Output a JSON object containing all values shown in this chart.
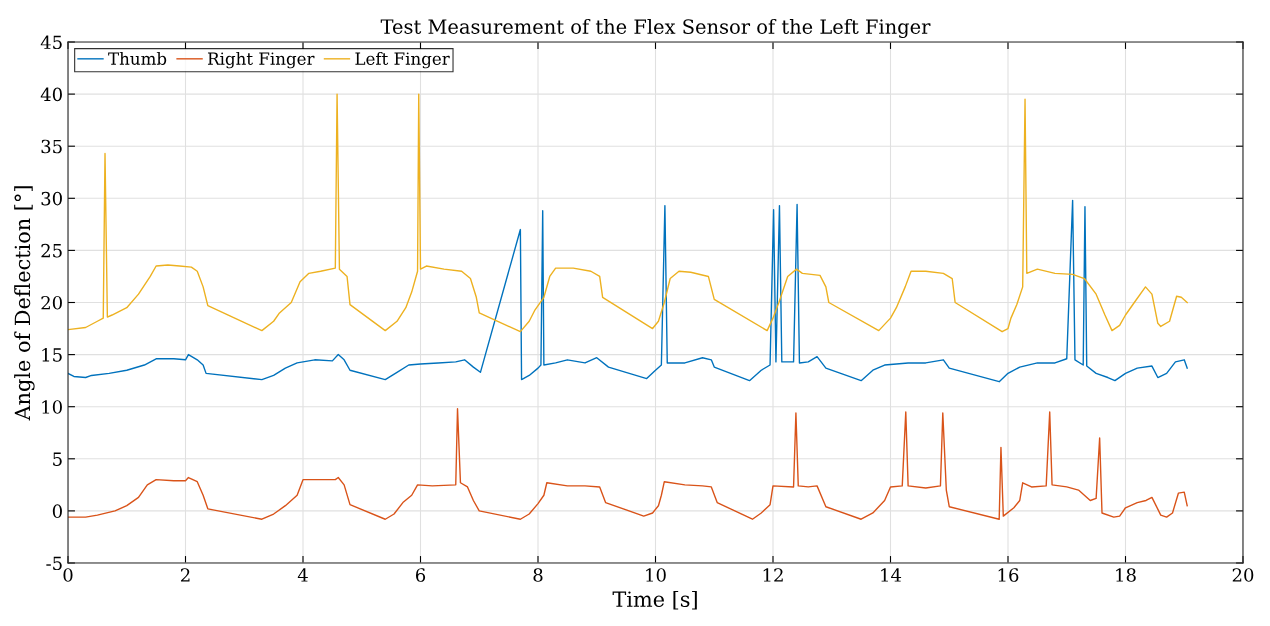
{
  "chart_data": {
    "type": "line",
    "title": "Test Measurement of the Flex Sensor of the Left Finger",
    "xlabel": "Time [s]",
    "ylabel": "Angle of Deflection [°]",
    "xlim": [
      0,
      20
    ],
    "xticks": [
      0,
      2,
      4,
      6,
      8,
      10,
      12,
      14,
      16,
      18,
      20
    ],
    "ylim": [
      -5,
      45
    ],
    "yticks": [
      -5,
      0,
      5,
      10,
      15,
      20,
      25,
      30,
      35,
      40,
      45
    ],
    "grid": true,
    "legend": "top left",
    "marker": "none",
    "line_style": "solid",
    "series": [
      {
        "name": "Thumb",
        "color": "#0072bd",
        "x": [
          0,
          0.1,
          0.3,
          0.4,
          0.7,
          1.0,
          1.3,
          1.5,
          1.8,
          2.0,
          2.05,
          2.2,
          2.3,
          2.35,
          3.3,
          3.5,
          3.7,
          3.9,
          4.2,
          4.5,
          4.6,
          4.7,
          4.8,
          5.4,
          5.6,
          5.8,
          6.0,
          6.3,
          6.6,
          6.75,
          6.9,
          7.02,
          7.7,
          7.72,
          7.85,
          8.0,
          8.05,
          8.08,
          8.1,
          8.3,
          8.5,
          8.8,
          9.0,
          9.2,
          9.85,
          10.0,
          10.1,
          10.16,
          10.2,
          10.5,
          10.8,
          10.95,
          11.0,
          11.6,
          11.8,
          11.95,
          12.01,
          12.05,
          12.11,
          12.15,
          12.35,
          12.41,
          12.45,
          12.6,
          12.75,
          12.9,
          13.5,
          13.7,
          13.9,
          14.3,
          14.6,
          14.9,
          15.0,
          15.85,
          16.0,
          16.2,
          16.5,
          16.8,
          17.0,
          17.1,
          17.14,
          17.28,
          17.31,
          17.34,
          17.5,
          17.7,
          17.82,
          18.0,
          18.2,
          18.45,
          18.55,
          18.7,
          18.85,
          19.0,
          19.05
        ],
        "values": [
          13.2,
          12.9,
          12.8,
          13.0,
          13.2,
          13.5,
          14.0,
          14.6,
          14.6,
          14.5,
          15.0,
          14.5,
          14.0,
          13.2,
          12.6,
          13.0,
          13.7,
          14.2,
          14.5,
          14.4,
          15.0,
          14.5,
          13.5,
          12.6,
          13.3,
          14.0,
          14.1,
          14.2,
          14.3,
          14.5,
          13.8,
          13.3,
          27.0,
          12.6,
          13.0,
          13.7,
          14.0,
          28.8,
          14.0,
          14.2,
          14.5,
          14.2,
          14.7,
          13.8,
          12.7,
          13.5,
          14.0,
          29.3,
          14.2,
          14.2,
          14.7,
          14.5,
          13.8,
          12.5,
          13.5,
          14.0,
          28.9,
          14.3,
          29.3,
          14.3,
          14.3,
          29.4,
          14.2,
          14.3,
          14.8,
          13.7,
          12.5,
          13.5,
          14.0,
          14.2,
          14.2,
          14.5,
          13.7,
          12.4,
          13.2,
          13.8,
          14.2,
          14.2,
          14.6,
          29.8,
          14.5,
          14.0,
          29.2,
          13.9,
          13.2,
          12.8,
          12.5,
          13.2,
          13.7,
          13.9,
          12.8,
          13.2,
          14.3,
          14.5,
          13.7
        ]
      },
      {
        "name": "Right Finger",
        "color": "#d95319",
        "x": [
          0,
          0.3,
          0.5,
          0.8,
          1.0,
          1.2,
          1.35,
          1.5,
          1.8,
          2.0,
          2.05,
          2.2,
          2.3,
          2.38,
          3.3,
          3.5,
          3.7,
          3.9,
          4.0,
          4.3,
          4.55,
          4.6,
          4.7,
          4.8,
          5.4,
          5.55,
          5.7,
          5.85,
          5.95,
          6.2,
          6.6,
          6.63,
          6.68,
          6.8,
          6.9,
          7.0,
          7.7,
          7.85,
          8.0,
          8.1,
          8.15,
          8.5,
          8.8,
          9.05,
          9.15,
          9.8,
          9.95,
          10.05,
          10.1,
          10.15,
          10.5,
          10.8,
          10.95,
          11.05,
          11.65,
          11.8,
          11.95,
          12.0,
          12.35,
          12.39,
          12.43,
          12.6,
          12.75,
          12.9,
          13.5,
          13.7,
          13.9,
          14.0,
          14.2,
          14.26,
          14.3,
          14.6,
          14.85,
          14.89,
          14.95,
          15.0,
          15.85,
          15.88,
          15.92,
          16.1,
          16.2,
          16.25,
          16.4,
          16.65,
          16.71,
          16.75,
          17.0,
          17.2,
          17.4,
          17.5,
          17.56,
          17.6,
          17.8,
          17.9,
          18.0,
          18.2,
          18.35,
          18.45,
          18.6,
          18.7,
          18.8,
          18.9,
          19.0,
          19.05
        ],
        "values": [
          -0.6,
          -0.6,
          -0.4,
          0,
          0.5,
          1.3,
          2.5,
          3.0,
          2.9,
          2.9,
          3.2,
          2.8,
          1.5,
          0.2,
          -0.8,
          -0.3,
          0.5,
          1.5,
          3.0,
          3.0,
          3.0,
          3.2,
          2.5,
          0.6,
          -0.8,
          -0.3,
          0.8,
          1.5,
          2.5,
          2.4,
          2.5,
          9.8,
          2.7,
          2.3,
          1.0,
          0.0,
          -0.8,
          -0.3,
          0.7,
          1.5,
          2.7,
          2.4,
          2.4,
          2.3,
          0.8,
          -0.5,
          -0.2,
          0.5,
          1.5,
          2.8,
          2.5,
          2.4,
          2.3,
          0.8,
          -0.8,
          -0.2,
          0.6,
          2.4,
          2.3,
          9.4,
          2.4,
          2.3,
          2.4,
          0.4,
          -0.8,
          -0.2,
          1.0,
          2.3,
          2.4,
          9.5,
          2.4,
          2.2,
          2.4,
          9.4,
          2.0,
          0.4,
          -0.8,
          6.1,
          -0.5,
          0.3,
          1.0,
          2.7,
          2.3,
          2.4,
          9.5,
          2.5,
          2.3,
          2.0,
          1.0,
          1.2,
          7.0,
          -0.2,
          -0.6,
          -0.5,
          0.3,
          0.8,
          1.0,
          1.3,
          -0.4,
          -0.6,
          -0.2,
          1.7,
          1.8,
          0.5
        ]
      },
      {
        "name": "Left Finger",
        "color": "#edb120",
        "x": [
          0,
          0.3,
          0.5,
          0.6,
          0.63,
          0.67,
          0.75,
          1.0,
          1.2,
          1.4,
          1.5,
          1.7,
          1.9,
          2.1,
          2.2,
          2.3,
          2.38,
          3.3,
          3.5,
          3.6,
          3.8,
          3.95,
          4.1,
          4.3,
          4.55,
          4.58,
          4.62,
          4.75,
          4.8,
          5.4,
          5.6,
          5.75,
          5.85,
          5.95,
          5.97,
          6.0,
          6.1,
          6.4,
          6.7,
          6.85,
          6.95,
          7.0,
          7.7,
          7.85,
          7.95,
          8.1,
          8.2,
          8.3,
          8.6,
          8.9,
          9.05,
          9.1,
          9.95,
          10.05,
          10.15,
          10.25,
          10.4,
          10.6,
          10.9,
          11.0,
          11.9,
          12.0,
          12.1,
          12.25,
          12.4,
          12.5,
          12.8,
          12.9,
          12.95,
          13.8,
          14.0,
          14.1,
          14.25,
          14.35,
          14.6,
          14.9,
          15.05,
          15.1,
          15.9,
          16.0,
          16.05,
          16.15,
          16.25,
          16.29,
          16.32,
          16.5,
          16.8,
          17.1,
          17.3,
          17.5,
          17.65,
          17.77,
          17.9,
          18.0,
          18.15,
          18.34,
          18.45,
          18.55,
          18.6,
          18.75,
          18.87,
          18.95,
          19.05
        ],
        "values": [
          17.4,
          17.6,
          18.2,
          18.5,
          34.3,
          18.6,
          18.8,
          19.5,
          20.8,
          22.5,
          23.5,
          23.6,
          23.5,
          23.4,
          23.0,
          21.5,
          19.7,
          17.3,
          18.2,
          19.0,
          20.0,
          22.0,
          22.8,
          23.0,
          23.3,
          40.0,
          23.2,
          22.5,
          19.8,
          17.3,
          18.2,
          19.5,
          21.0,
          23.0,
          40.0,
          23.2,
          23.5,
          23.2,
          23.0,
          22.3,
          20.5,
          19.0,
          17.2,
          18.2,
          19.3,
          20.5,
          22.5,
          23.3,
          23.3,
          23.0,
          22.5,
          20.5,
          17.5,
          18.2,
          20.0,
          22.3,
          23.0,
          22.9,
          22.5,
          20.3,
          17.3,
          18.5,
          20.0,
          22.5,
          23.2,
          22.8,
          22.6,
          21.5,
          20.0,
          17.3,
          18.5,
          19.5,
          21.5,
          23.0,
          23.0,
          22.8,
          22.3,
          20.0,
          17.2,
          17.5,
          18.5,
          19.8,
          21.5,
          39.5,
          22.8,
          23.2,
          22.8,
          22.7,
          22.3,
          20.8,
          18.8,
          17.3,
          17.8,
          18.8,
          20.0,
          21.5,
          20.8,
          18.0,
          17.7,
          18.2,
          20.6,
          20.5,
          20.0
        ]
      }
    ]
  }
}
